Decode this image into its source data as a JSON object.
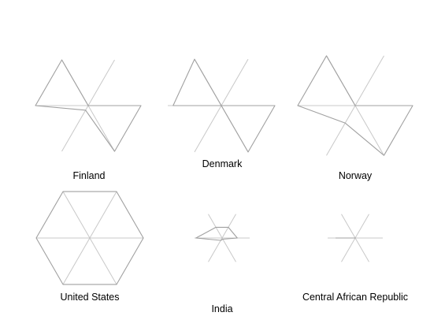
{
  "chart_data": {
    "type": "radar-small-multiples",
    "axes_count": 6,
    "title": "",
    "value_range": [
      0,
      1
    ],
    "colors": {
      "background": "#ffffff",
      "grid_line": "#c8c8c8",
      "shape_outline": "#a0a0a0",
      "label": "#000000"
    },
    "panels": [
      {
        "country": "Finland",
        "values": [
          1.0,
          0.0,
          1.0,
          1.0,
          0.1,
          1.0
        ]
      },
      {
        "country": "Denmark",
        "values": [
          1.0,
          0.0,
          1.0,
          0.9,
          0.0,
          1.0
        ]
      },
      {
        "country": "Norway",
        "values": [
          1.0,
          0.0,
          1.0,
          1.0,
          0.35,
          1.0
        ]
      },
      {
        "country": "United States",
        "values": [
          1.0,
          1.0,
          1.0,
          1.0,
          1.0,
          1.0
        ]
      },
      {
        "country": "India",
        "values": [
          0.55,
          0.45,
          0.45,
          0.95,
          0.1,
          0.05
        ]
      },
      {
        "country": "Central African Republic",
        "values": [
          0.0,
          0.0,
          0.0,
          0.7,
          0.0,
          0.0
        ]
      }
    ]
  }
}
